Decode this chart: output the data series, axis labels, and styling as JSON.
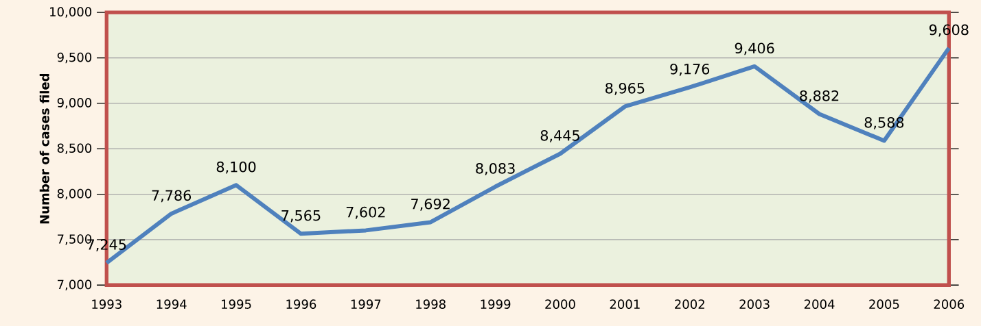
{
  "chart_data": {
    "type": "line",
    "ylabel": "Number of cases filed",
    "categories": [
      "1993",
      "1994",
      "1995",
      "1996",
      "1997",
      "1998",
      "1999",
      "2000",
      "2001",
      "2002",
      "2003",
      "2004",
      "2005",
      "2006"
    ],
    "series": [
      {
        "color": "#4f81bd",
        "values": [
          7245,
          7786,
          8100,
          7565,
          7602,
          7692,
          8083,
          8445,
          8965,
          9176,
          9406,
          8882,
          8588,
          9608
        ],
        "value_labels": [
          "7,245",
          "7,786",
          "8,100",
          "7,565",
          "7,602",
          "7,692",
          "8,083",
          "8,445",
          "8,965",
          "9,176",
          "9,406",
          "8,882",
          "8,588",
          "9,608"
        ]
      }
    ],
    "ylim": [
      7000,
      10000
    ],
    "yticks": [
      {
        "value": 7000,
        "label": "7,000"
      },
      {
        "value": 7500,
        "label": "7,500"
      },
      {
        "value": 8000,
        "label": "8,000"
      },
      {
        "value": 8500,
        "label": "8,500"
      },
      {
        "value": 9000,
        "label": "9,000"
      },
      {
        "value": 9500,
        "label": "9,500"
      },
      {
        "value": 10000,
        "label": "10,000"
      }
    ],
    "grid": "y",
    "marker": "none",
    "line_style": "solid"
  }
}
